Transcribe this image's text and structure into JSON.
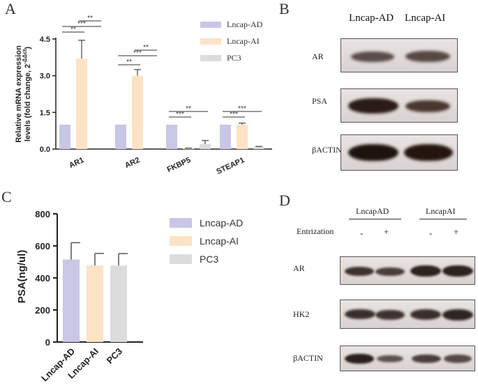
{
  "panels": {
    "a": "A",
    "b": "B",
    "c": "C",
    "d": "D"
  },
  "colors": {
    "lncap_ad": "#c9c7e6",
    "lncap_ai": "#fde3c6",
    "pc3": "#dcdcdc",
    "axis": "#222222"
  },
  "chart_data": [
    {
      "type": "bar",
      "panel": "A",
      "categories": [
        "AR1",
        "AR2",
        "FKBP5",
        "STEAP1"
      ],
      "series": [
        {
          "name": "Lncap-AD",
          "values": [
            1.0,
            1.0,
            1.0,
            1.0
          ],
          "errors": [
            0,
            0,
            0,
            0
          ]
        },
        {
          "name": "Lncap-AI",
          "values": [
            3.7,
            3.0,
            0.03,
            1.0
          ],
          "errors": [
            0.75,
            0.25,
            0.01,
            0.06
          ]
        },
        {
          "name": "PC3",
          "values": [
            0.0,
            0.0,
            0.2,
            0.08
          ],
          "errors": [
            0,
            0,
            0.15,
            0.03
          ]
        }
      ],
      "ylabel": "Relative mRNA expression levels (fold change, 2^-ΔΔct)",
      "ylim": [
        0,
        4.5
      ],
      "yticks": [
        "0.0",
        "1.5",
        "3.0",
        "4.5"
      ],
      "significance": [
        {
          "category": 0,
          "marks": [
            "**",
            "***",
            "**"
          ]
        },
        {
          "category": 1,
          "marks": [
            "**",
            "***",
            "**"
          ]
        },
        {
          "category": 2,
          "marks": [
            "***",
            "**"
          ]
        },
        {
          "category": 3,
          "marks": [
            "***",
            "***"
          ]
        }
      ],
      "legend_position": "top-right"
    },
    {
      "type": "bar",
      "panel": "C",
      "categories": [
        "Lncap-AD",
        "Lncap-AI",
        "PC3"
      ],
      "values": [
        515,
        478,
        477
      ],
      "errors": [
        105,
        75,
        75
      ],
      "ylabel": "PSA(ng/ul)",
      "ylim": [
        0,
        800
      ],
      "yticks": [
        "0",
        "200",
        "400",
        "600",
        "800"
      ],
      "legend": [
        "Lncap-AD",
        "Lncap-AI",
        "PC3"
      ],
      "legend_position": "right"
    }
  ],
  "blot_b": {
    "headers": [
      "Lncap-AD",
      "Lncap-AI"
    ],
    "rows": [
      "AR",
      "PSA",
      "βACTIN"
    ]
  },
  "blot_d": {
    "groups": [
      "LncapAD",
      "LncapAI"
    ],
    "treatment_label": "Entrization",
    "signs": [
      "-",
      "+",
      "-",
      "+"
    ],
    "rows": [
      "AR",
      "HK2",
      "βACTIN"
    ]
  }
}
